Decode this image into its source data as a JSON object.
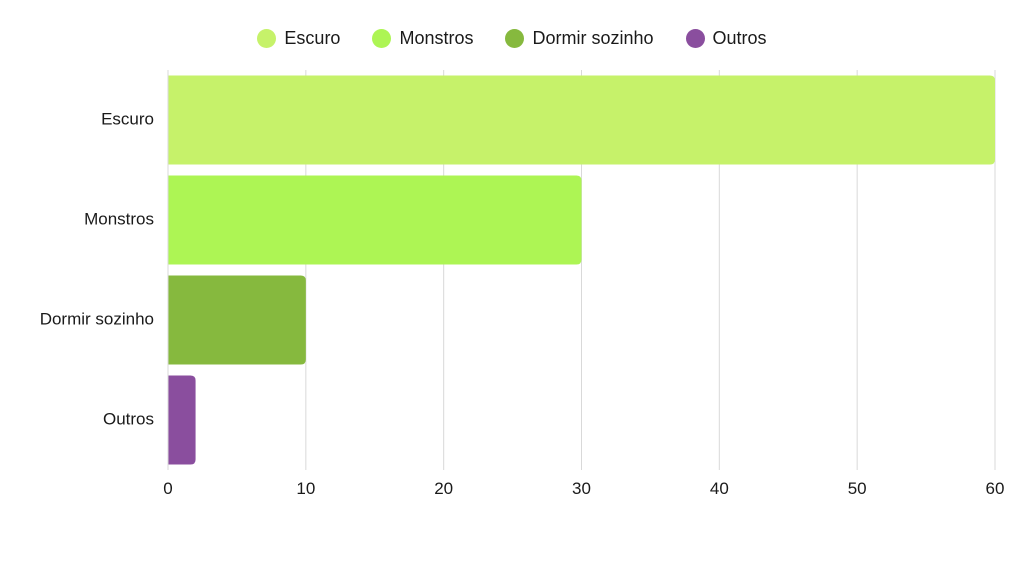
{
  "chart_data": {
    "type": "bar",
    "orientation": "horizontal",
    "categories": [
      "Escuro",
      "Monstros",
      "Dormir sozinho",
      "Outros"
    ],
    "values": [
      60,
      30,
      10,
      2
    ],
    "colors": [
      "#c6f26a",
      "#adf554",
      "#86b93e",
      "#8a4e9e"
    ],
    "xlim": [
      0,
      60
    ],
    "xticks": [
      0,
      10,
      20,
      30,
      40,
      50,
      60
    ],
    "grid": true,
    "legend_position": "top-center",
    "legend": [
      {
        "label": "Escuro",
        "color": "#c6f26a"
      },
      {
        "label": "Monstros",
        "color": "#adf554"
      },
      {
        "label": "Dormir sozinho",
        "color": "#86b93e"
      },
      {
        "label": "Outros",
        "color": "#8a4e9e"
      }
    ]
  }
}
